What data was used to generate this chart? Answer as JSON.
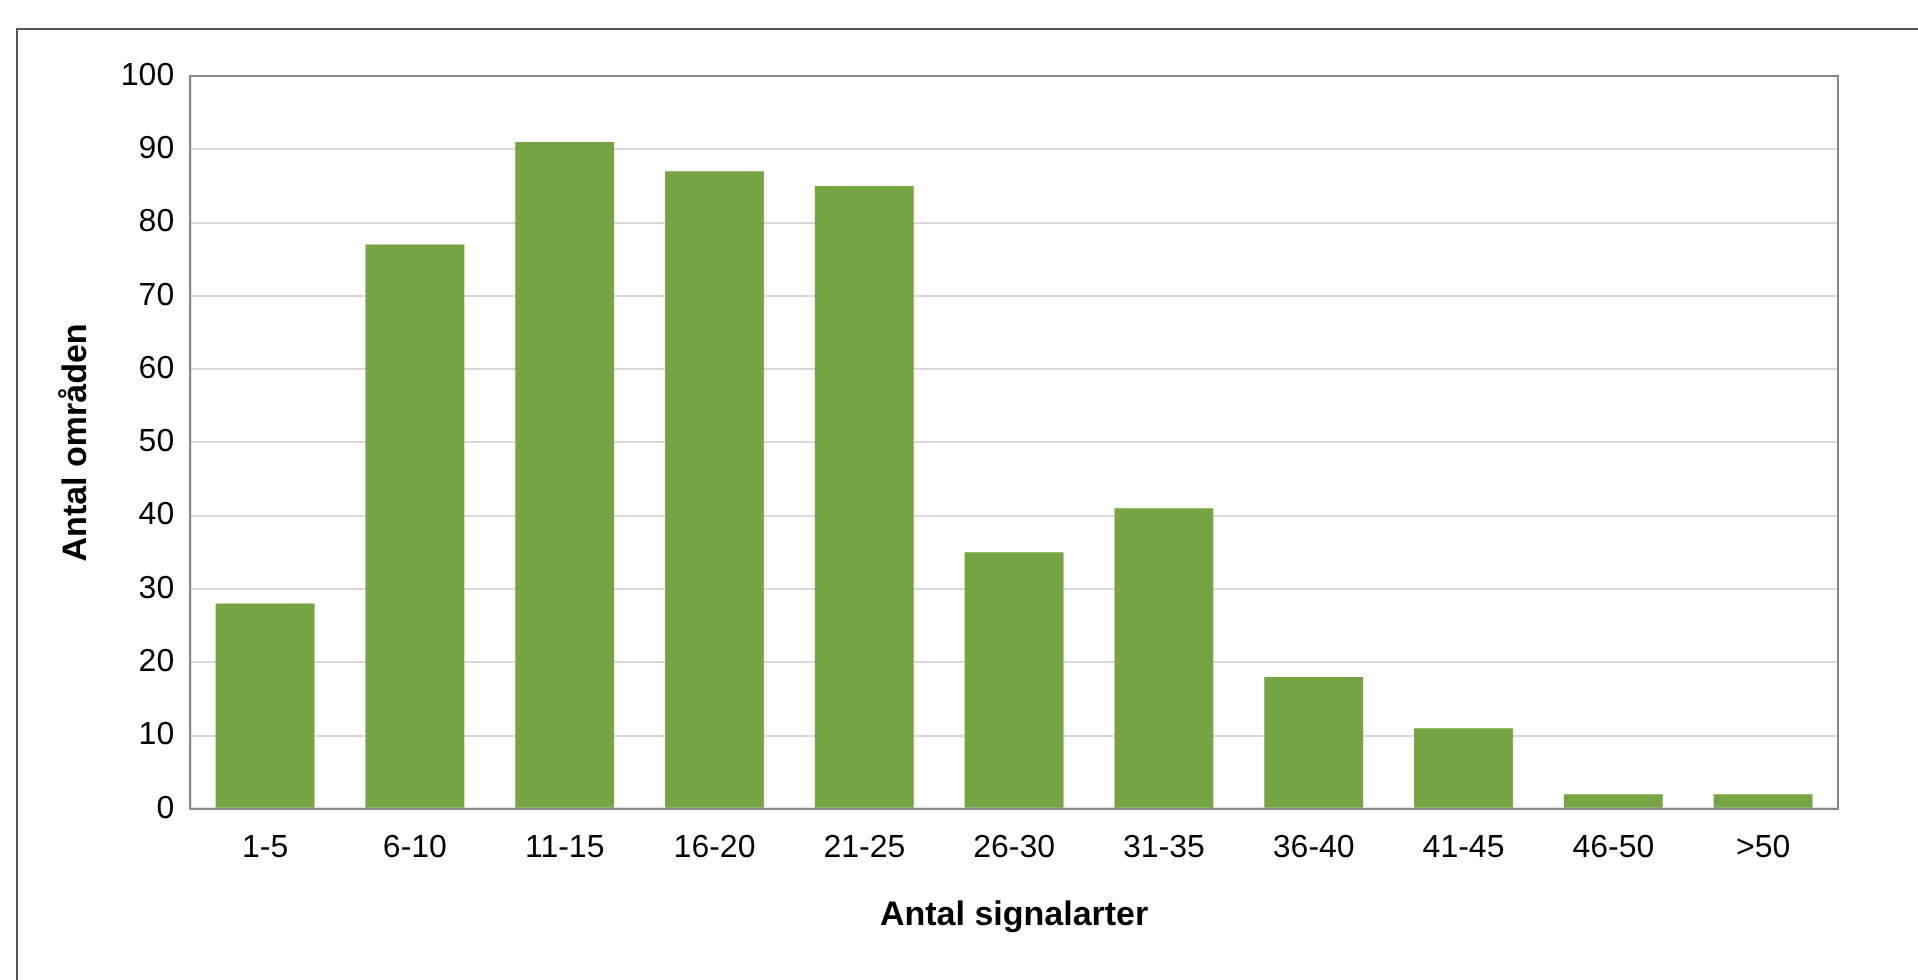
{
  "chart_data": {
    "type": "bar",
    "xlabel": "Antal signalarter",
    "ylabel": "Antal områden",
    "categories": [
      "1-5",
      "6-10",
      "11-15",
      "16-20",
      "21-25",
      "26-30",
      "31-35",
      "36-40",
      "41-45",
      "46-50",
      ">50"
    ],
    "values": [
      28,
      77,
      91,
      87,
      85,
      35,
      41,
      18,
      11,
      2,
      2
    ],
    "color": "#77a443",
    "ylim": [
      0,
      100
    ],
    "yticks": [
      0,
      10,
      20,
      30,
      40,
      50,
      60,
      70,
      80,
      90,
      100
    ],
    "grid": "y",
    "legend": false
  }
}
